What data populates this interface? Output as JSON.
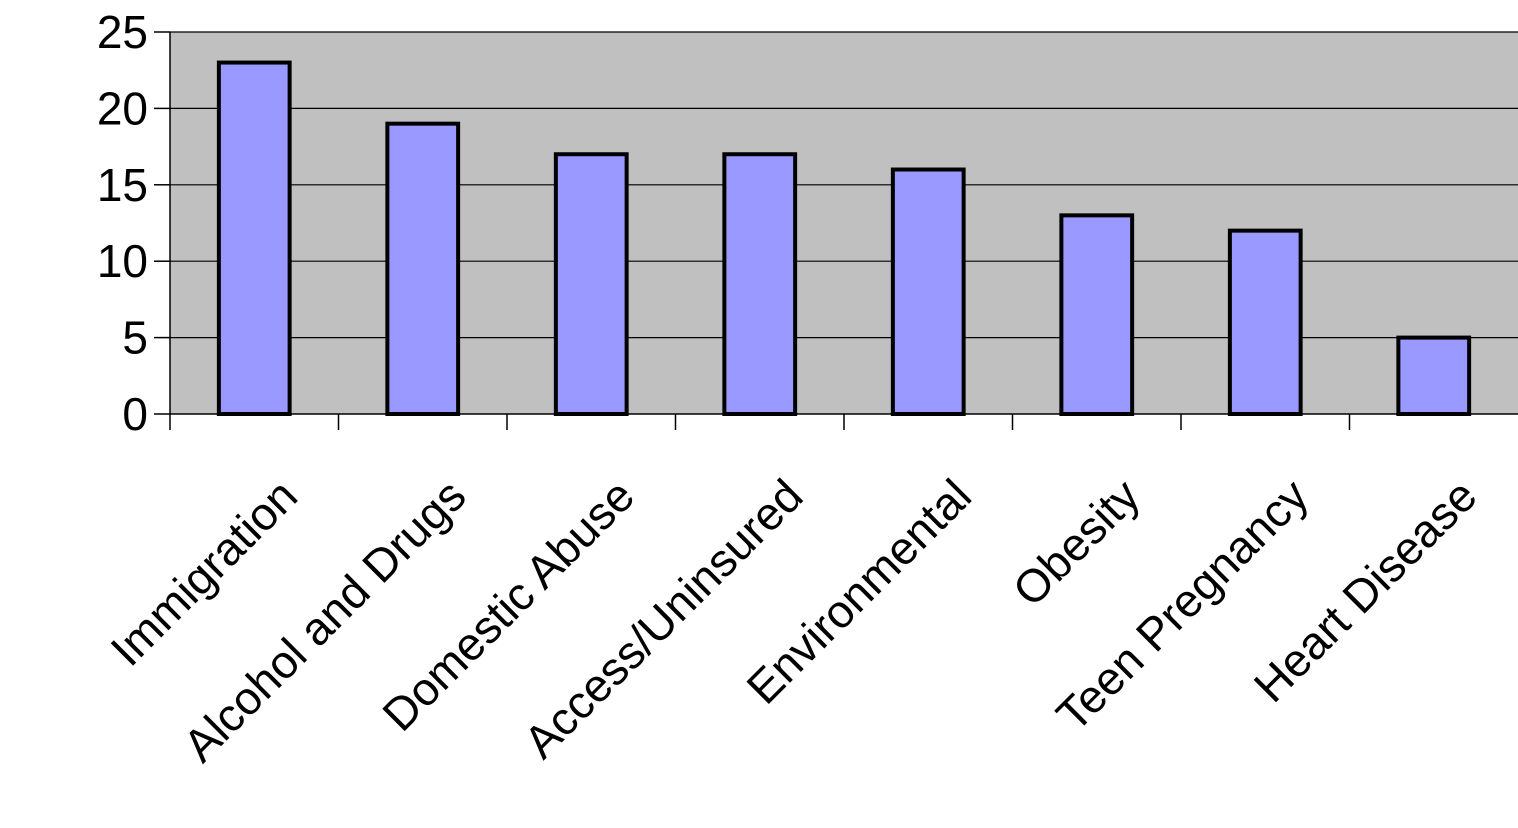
{
  "chart_data": {
    "type": "bar",
    "categories": [
      "Immigration",
      "Alcohol and Drugs",
      "Domestic Abuse",
      "Access/Uninsured",
      "Environmental",
      "Obesity",
      "Teen Pregnancy",
      "Heart Disease"
    ],
    "values": [
      23,
      19,
      17,
      17,
      16,
      13,
      12,
      5
    ],
    "yticks": [
      "0",
      "5",
      "10",
      "15",
      "20",
      "25"
    ],
    "ylim": [
      0,
      25
    ],
    "title": "",
    "xlabel": "",
    "ylabel": "",
    "grid": true,
    "legend": "none",
    "colors": {
      "plot_background": "#c0c0c0",
      "bar_fill": "#9999ff",
      "bar_stroke": "#000000",
      "gridline": "#000000"
    }
  }
}
